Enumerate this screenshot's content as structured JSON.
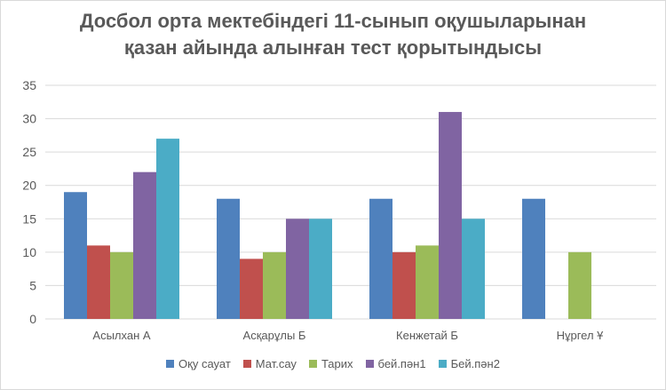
{
  "chart_data": {
    "type": "bar",
    "title_lines": [
      "Досбол орта мектебіндегі 11-сынып оқушыларынан",
      "қазан айында алынған тест қорытындысы"
    ],
    "categories": [
      "Асылхан А",
      "Асқарұлы Б",
      "Кенжетай Б",
      "Нұргел Ұ"
    ],
    "series": [
      {
        "name": "Оқу сауат",
        "color": "#4f81bd",
        "values": [
          19,
          18,
          18,
          18
        ]
      },
      {
        "name": "Мат.сау",
        "color": "#c0504d",
        "values": [
          11,
          9,
          10,
          null
        ]
      },
      {
        "name": "Тарих",
        "color": "#9bbb59",
        "values": [
          10,
          10,
          11,
          10
        ]
      },
      {
        "name": "бей.пән1",
        "color": "#8064a2",
        "values": [
          22,
          15,
          31,
          null
        ]
      },
      {
        "name": "Бей.пән2",
        "color": "#4bacc6",
        "values": [
          27,
          15,
          15,
          null
        ]
      }
    ],
    "ylim": [
      0,
      35
    ],
    "yticks": [
      0,
      5,
      10,
      15,
      20,
      25,
      30,
      35
    ],
    "grid": true,
    "legend_position": "bottom"
  }
}
